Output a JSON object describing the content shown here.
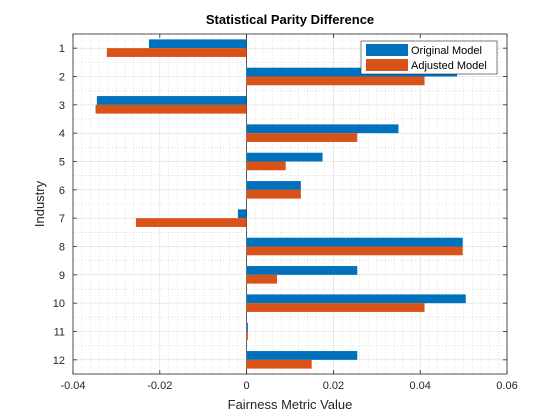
{
  "chart_data": {
    "type": "bar",
    "orientation": "horizontal",
    "title": "Statistical Parity Difference",
    "xlabel": "Fairness Metric Value",
    "ylabel": "Industry",
    "xlim": [
      -0.04,
      0.06
    ],
    "x_ticks": [
      -0.04,
      -0.02,
      0,
      0.02,
      0.04,
      0.06
    ],
    "x_tick_labels": [
      "-0.04",
      "-0.02",
      "0",
      "0.02",
      "0.04",
      "0.06"
    ],
    "categories": [
      "1",
      "2",
      "3",
      "4",
      "5",
      "6",
      "7",
      "8",
      "9",
      "10",
      "11",
      "12"
    ],
    "series": [
      {
        "name": "Original Model",
        "color": "#0072BD",
        "values": [
          -0.0225,
          0.0485,
          -0.0345,
          0.035,
          0.0175,
          0.0125,
          -0.002,
          0.0498,
          0.0255,
          0.0505,
          0.0003,
          0.0255
        ]
      },
      {
        "name": "Adjusted Model",
        "color": "#D95319",
        "values": [
          -0.0322,
          0.041,
          -0.0348,
          0.0255,
          0.009,
          0.0125,
          -0.0255,
          0.0498,
          0.007,
          0.041,
          0.0003,
          0.015
        ]
      }
    ],
    "grid": "major and minor",
    "legend_position": "top-right"
  }
}
